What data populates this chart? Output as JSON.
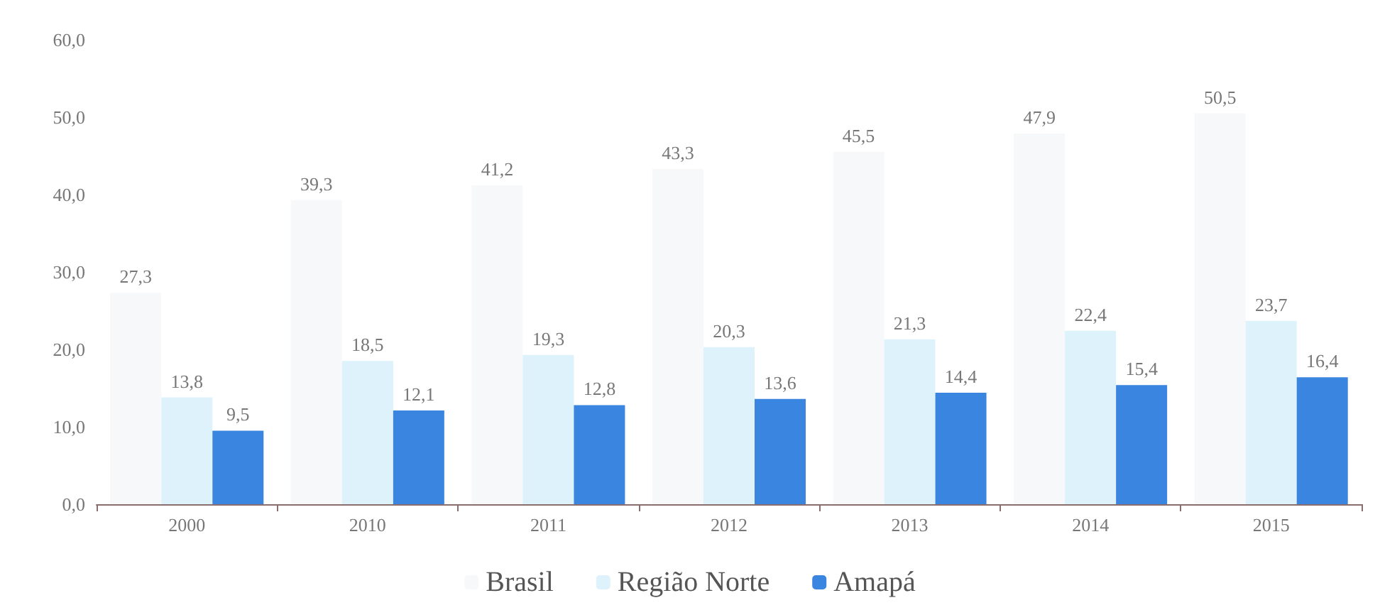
{
  "chart_data": {
    "type": "bar",
    "categories": [
      "2000",
      "2010",
      "2011",
      "2012",
      "2013",
      "2014",
      "2015"
    ],
    "series": [
      {
        "name": "Brasil",
        "color": "#f6f8f9",
        "values": [
          27.3,
          39.3,
          41.2,
          43.3,
          45.5,
          47.9,
          50.5
        ],
        "value_labels": [
          "27,3",
          "39,3",
          "41,2",
          "43,3",
          "45,5",
          "47,9",
          "50,5"
        ]
      },
      {
        "name": "Região Norte",
        "color": "#def2fb",
        "values": [
          13.8,
          18.5,
          19.3,
          20.3,
          21.3,
          22.4,
          23.7
        ],
        "value_labels": [
          "13,8",
          "18,5",
          "19,3",
          "20,3",
          "21,3",
          "22,4",
          "23,7"
        ]
      },
      {
        "name": "Amapá",
        "color": "#3a85e0",
        "values": [
          9.5,
          12.1,
          12.8,
          13.6,
          14.4,
          15.4,
          16.4
        ],
        "value_labels": [
          "9,5",
          "12,1",
          "12,8",
          "13,6",
          "14,4",
          "15,4",
          "16,4"
        ]
      }
    ],
    "ylim": [
      0,
      60
    ],
    "yticks": [
      {
        "value": 0,
        "label": "0,0"
      },
      {
        "value": 10,
        "label": "10,0"
      },
      {
        "value": 20,
        "label": "20,0"
      },
      {
        "value": 30,
        "label": "30,0"
      },
      {
        "value": 40,
        "label": "40,0"
      },
      {
        "value": 50,
        "label": "50,0"
      },
      {
        "value": 60,
        "label": "60,0"
      }
    ],
    "grid": false,
    "legend": "bottom"
  }
}
